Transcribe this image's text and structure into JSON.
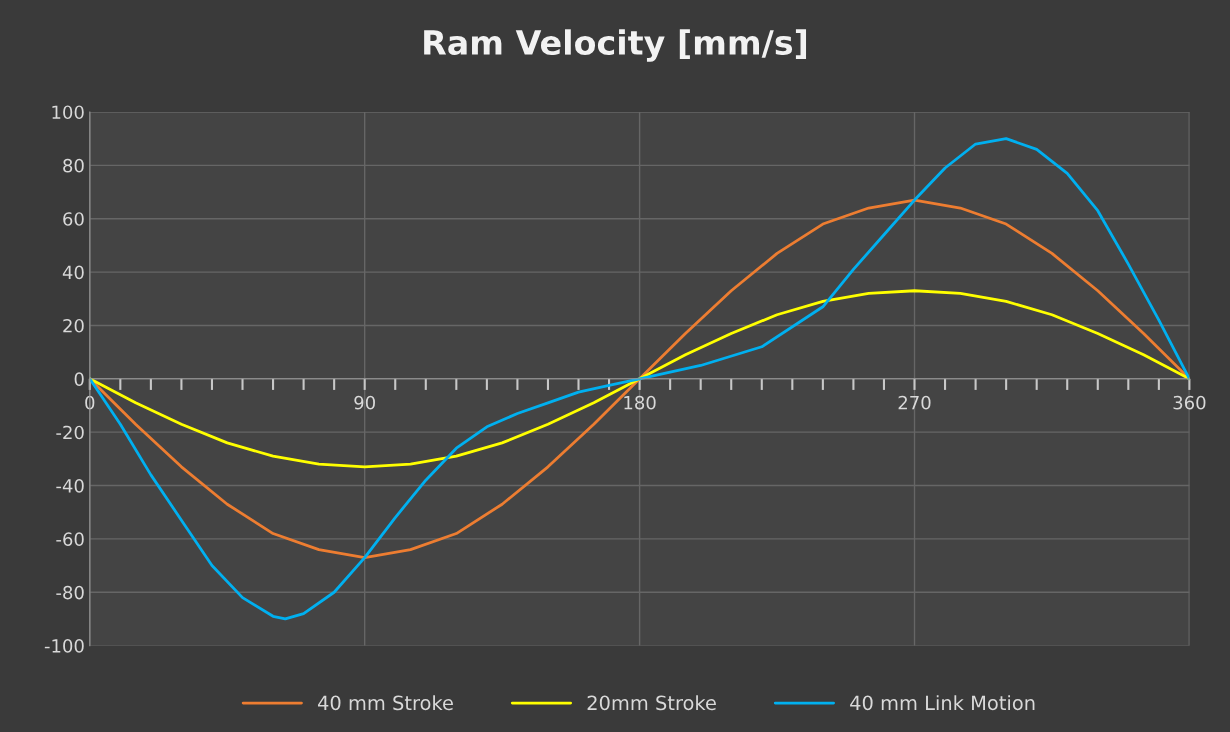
{
  "chart_data": {
    "type": "line",
    "title": "Ram Velocity [mm/s]",
    "xlim": [
      0,
      360
    ],
    "ylim": [
      -100,
      100
    ],
    "xticks": [
      0,
      {
        "value": 10,
        "label": null
      },
      {
        "value": 20,
        "label": null
      },
      {
        "value": 30,
        "label": null
      },
      {
        "value": 40,
        "label": null
      },
      {
        "value": 50,
        "label": null
      },
      {
        "value": 60,
        "label": null
      },
      {
        "value": 70,
        "label": null
      },
      {
        "value": 80,
        "label": null
      },
      90,
      {
        "value": 100,
        "label": null
      },
      {
        "value": 110,
        "label": null
      },
      {
        "value": 120,
        "label": null
      },
      {
        "value": 130,
        "label": null
      },
      {
        "value": 140,
        "label": null
      },
      {
        "value": 150,
        "label": null
      },
      {
        "value": 160,
        "label": null
      },
      {
        "value": 170,
        "label": null
      },
      180,
      {
        "value": 190,
        "label": null
      },
      {
        "value": 200,
        "label": null
      },
      {
        "value": 210,
        "label": null
      },
      {
        "value": 220,
        "label": null
      },
      {
        "value": 230,
        "label": null
      },
      {
        "value": 240,
        "label": null
      },
      {
        "value": 250,
        "label": null
      },
      {
        "value": 260,
        "label": null
      },
      270,
      {
        "value": 280,
        "label": null
      },
      {
        "value": 290,
        "label": null
      },
      {
        "value": 300,
        "label": null
      },
      {
        "value": 310,
        "label": null
      },
      {
        "value": 320,
        "label": null
      },
      {
        "value": 330,
        "label": null
      },
      {
        "value": 340,
        "label": null
      },
      {
        "value": 350,
        "label": null
      },
      360
    ],
    "yticks": [
      -100,
      -80,
      -60,
      -40,
      -20,
      0,
      20,
      40,
      60,
      80,
      100
    ],
    "grid": true,
    "legend": "bottom",
    "marker": "none",
    "line_style": "solid",
    "series": [
      {
        "name": "40 mm Stroke",
        "color": "#ed7d31",
        "x": [
          0,
          15,
          30,
          45,
          60,
          75,
          90,
          105,
          120,
          135,
          150,
          165,
          180,
          195,
          210,
          225,
          240,
          255,
          270,
          285,
          300,
          315,
          330,
          345,
          360
        ],
        "values": [
          0,
          -17,
          -33,
          -47,
          -58,
          -64,
          -67,
          -64,
          -58,
          -47,
          -33,
          -17,
          0,
          17,
          33,
          47,
          58,
          64,
          67,
          64,
          58,
          47,
          33,
          17,
          0
        ]
      },
      {
        "name": "20mm Stroke",
        "color": "#ffff00",
        "x": [
          0,
          15,
          30,
          45,
          60,
          75,
          90,
          105,
          120,
          135,
          150,
          165,
          180,
          195,
          210,
          225,
          240,
          255,
          270,
          285,
          300,
          315,
          330,
          345,
          360
        ],
        "values": [
          0,
          -9,
          -17,
          -24,
          -29,
          -32,
          -33,
          -32,
          -29,
          -24,
          -17,
          -9,
          0,
          9,
          17,
          24,
          29,
          32,
          33,
          32,
          29,
          24,
          17,
          9,
          0
        ]
      },
      {
        "name": "40 mm Link Motion",
        "color": "#00b0f0",
        "x": [
          0,
          10,
          20,
          30,
          40,
          50,
          60,
          64,
          70,
          80,
          90,
          100,
          110,
          120,
          130,
          140,
          150,
          160,
          170,
          180,
          200,
          220,
          240,
          250,
          260,
          270,
          280,
          290,
          300,
          310,
          320,
          330,
          340,
          350,
          360
        ],
        "values": [
          0,
          -17,
          -36,
          -53,
          -70,
          -82,
          -89,
          -90,
          -88,
          -80,
          -67,
          -52,
          -38,
          -26,
          -18,
          -13,
          -9,
          -5,
          -2.5,
          0,
          5,
          12,
          27,
          41,
          54,
          67,
          79,
          88,
          90,
          86,
          77,
          63,
          43,
          22,
          0
        ]
      }
    ]
  }
}
